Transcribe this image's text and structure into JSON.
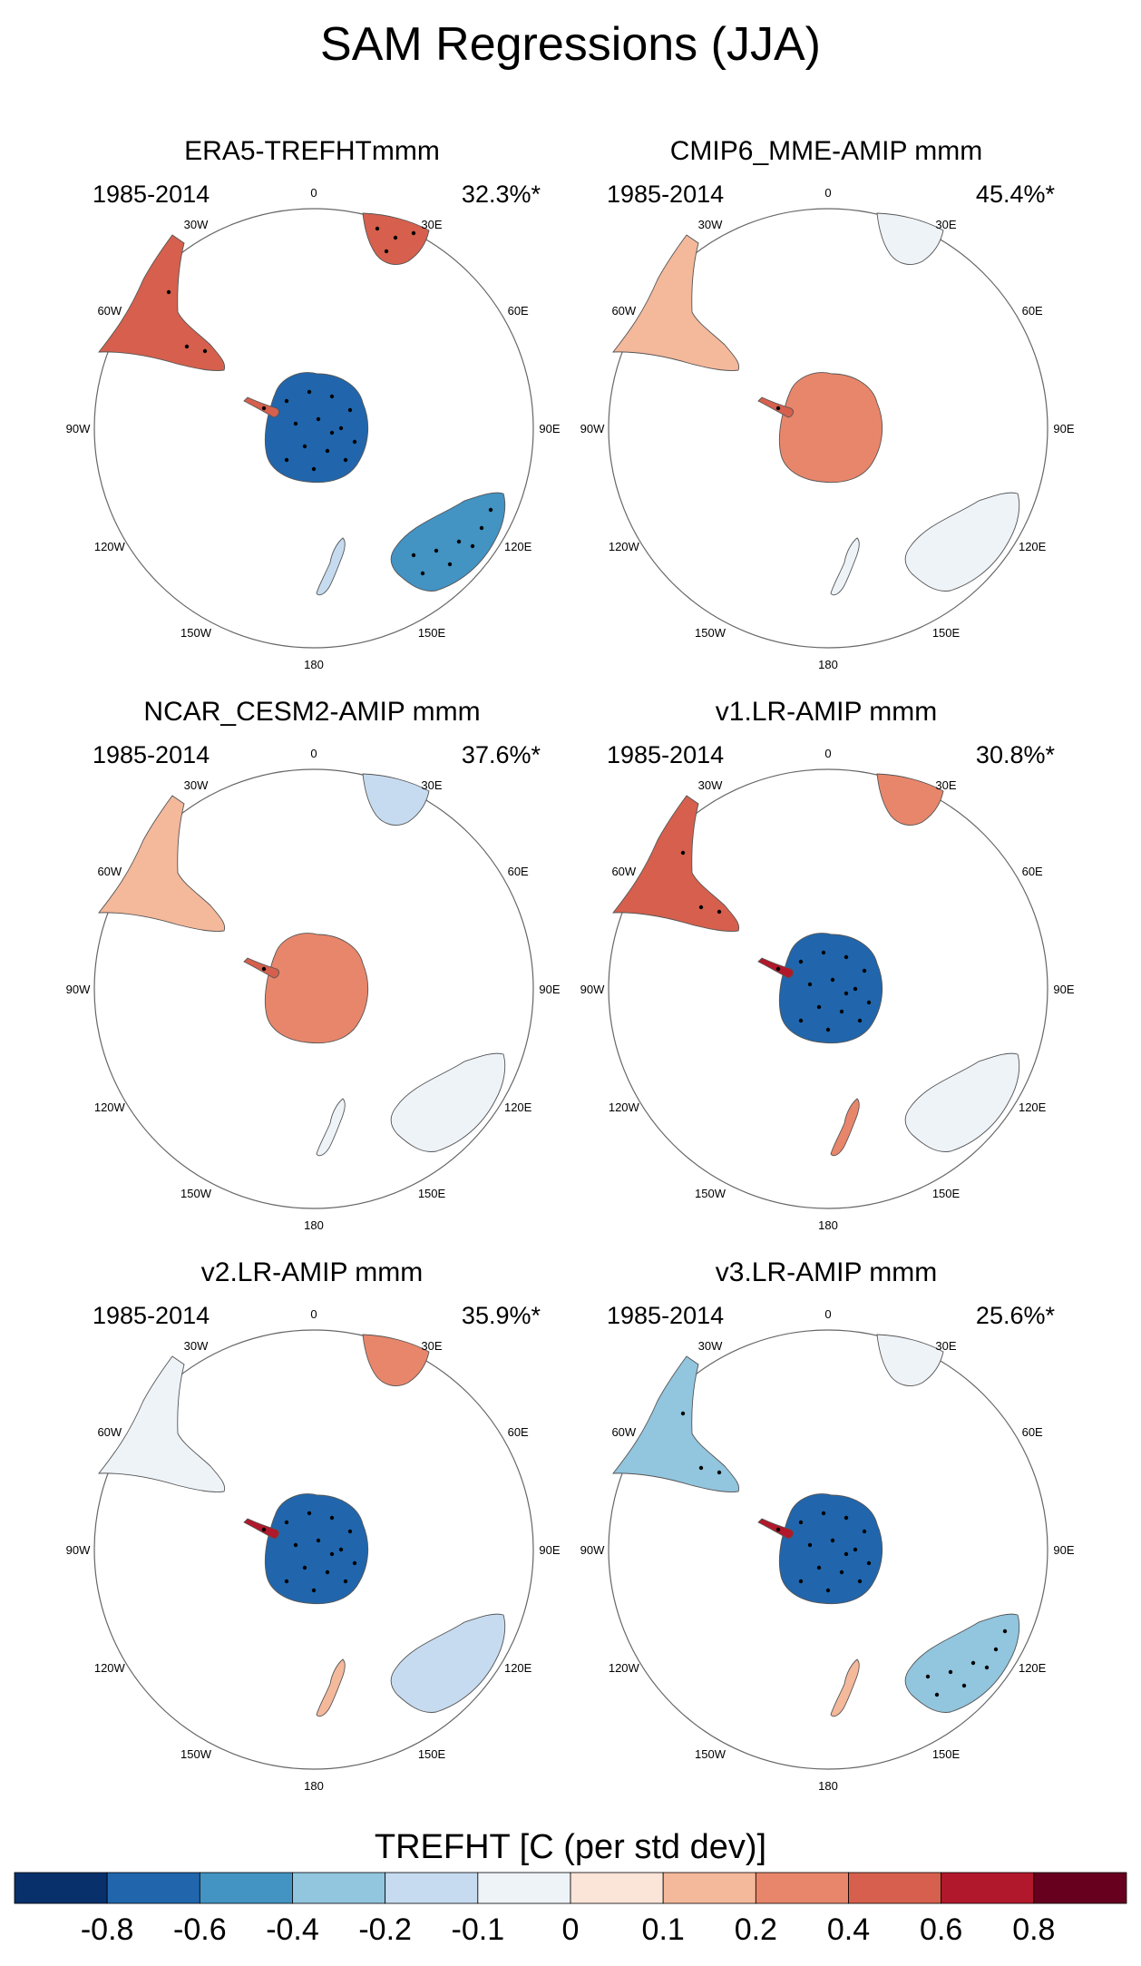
{
  "title": "SAM Regressions (JJA)",
  "panels": [
    {
      "title": "ERA5-TREFHTmmm",
      "period": "1985-2014",
      "pct": "32.3%*",
      "fields": {
        "antarctica": -0.8,
        "antarctic_peninsula": 0.4,
        "south_america": 0.4,
        "south_africa": 0.4,
        "australia": -0.6,
        "new_zealand": -0.2
      }
    },
    {
      "title": "CMIP6_MME-AMIP  mmm",
      "period": "1985-2014",
      "pct": "45.4%*",
      "fields": {
        "antarctica": 0.2,
        "antarctic_peninsula": 0.4,
        "south_america": 0.1,
        "south_africa": -0.1,
        "australia": -0.1,
        "new_zealand": -0.1
      }
    },
    {
      "title": "NCAR_CESM2-AMIP  mmm",
      "period": "1985-2014",
      "pct": "37.6%*",
      "fields": {
        "antarctica": 0.2,
        "antarctic_peninsula": 0.4,
        "south_america": 0.1,
        "south_africa": -0.2,
        "australia": -0.1,
        "new_zealand": -0.1
      }
    },
    {
      "title": "v1.LR-AMIP  mmm",
      "period": "1985-2014",
      "pct": "30.8%*",
      "fields": {
        "antarctica": -0.8,
        "antarctic_peninsula": 0.6,
        "south_america": 0.4,
        "south_africa": 0.2,
        "australia": -0.1,
        "new_zealand": 0.2
      }
    },
    {
      "title": "v2.LR-AMIP  mmm",
      "period": "1985-2014",
      "pct": "35.9%*",
      "fields": {
        "antarctica": -0.8,
        "antarctic_peninsula": 0.6,
        "south_america": -0.1,
        "south_africa": 0.2,
        "australia": -0.2,
        "new_zealand": 0.1
      }
    },
    {
      "title": "v3.LR-AMIP  mmm",
      "period": "1985-2014",
      "pct": "25.6%*",
      "fields": {
        "antarctica": -0.8,
        "antarctic_peninsula": 0.6,
        "south_america": -0.4,
        "south_africa": -0.1,
        "australia": -0.4,
        "new_zealand": 0.1
      }
    }
  ],
  "lon_labels": [
    "0",
    "30E",
    "60E",
    "90E",
    "120E",
    "150E",
    "180",
    "150W",
    "120W",
    "90W",
    "60W",
    "30W"
  ],
  "colorbar": {
    "title": "TREFHT [C (per std dev)]",
    "colors": [
      "#08306b",
      "#2166ac",
      "#4393c3",
      "#92c5de",
      "#c6dbef",
      "#eef3f8",
      "#fbe4d8",
      "#f4b89b",
      "#e8866b",
      "#d6604d",
      "#b2182b",
      "#67001f"
    ],
    "levels": [
      -0.8,
      -0.6,
      -0.4,
      -0.2,
      -0.1,
      0,
      0.1,
      0.2,
      0.4,
      0.6,
      0.8
    ],
    "labels": [
      "-0.8",
      "-0.6",
      "-0.4",
      "-0.2",
      "-0.1",
      "0",
      "0.1",
      "0.2",
      "0.4",
      "0.6",
      "0.8"
    ]
  }
}
